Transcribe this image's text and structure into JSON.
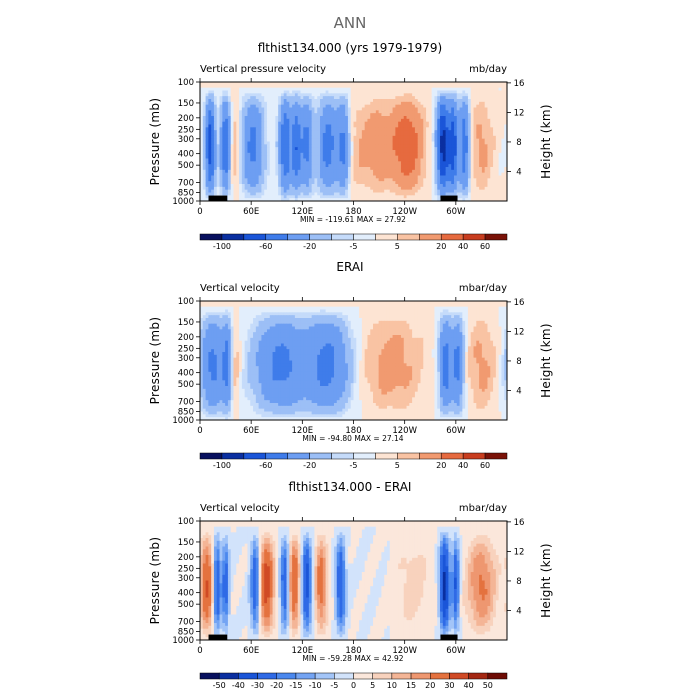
{
  "title": "ANN",
  "scales": {
    "full": {
      "levels": [
        -100,
        -80,
        -60,
        -40,
        -20,
        -10,
        -5,
        0,
        5,
        10,
        20,
        40,
        60
      ],
      "labels": [
        "-100",
        "-60",
        "-20",
        "-5",
        "5",
        "20",
        "40",
        "60"
      ],
      "label_levels": [
        -100,
        -60,
        -20,
        -5,
        5,
        20,
        40,
        60
      ],
      "colors": [
        "#08105e",
        "#0a2fa0",
        "#1a55d8",
        "#3f7cea",
        "#6d9ef2",
        "#9cbff6",
        "#c5dbfa",
        "#e2eefc",
        "#fde4d3",
        "#f9c3a3",
        "#f19a70",
        "#e66a3f",
        "#c83d1f",
        "#7a1208"
      ]
    },
    "diff": {
      "levels": [
        -50,
        -40,
        -30,
        -20,
        -15,
        -10,
        -5,
        0,
        5,
        10,
        15,
        20,
        30,
        40,
        50
      ],
      "labels": [
        "-50",
        "-40",
        "-30",
        "-20",
        "-15",
        "-10",
        "-5",
        "0",
        "5",
        "10",
        "15",
        "20",
        "30",
        "40",
        "50"
      ],
      "label_levels": [
        -50,
        -40,
        -30,
        -20,
        -15,
        -10,
        -5,
        0,
        5,
        10,
        15,
        20,
        30,
        40,
        50
      ],
      "colors": [
        "#08105e",
        "#0a2fa0",
        "#1a55d8",
        "#2f6ae6",
        "#4b88ee",
        "#74a4f3",
        "#a3c5f8",
        "#d2e3fb",
        "#fbe7db",
        "#f8d2bd",
        "#f4b596",
        "#ee9770",
        "#e4723f",
        "#d04a25",
        "#a42712",
        "#6e0c05"
      ]
    }
  },
  "panels": [
    {
      "title": "flthist134.000 (yrs 1979-1979)",
      "left_label": "Vertical pressure velocity",
      "right_label": "mb/day",
      "minmax": "MIN = -119.61   MAX =  27.92",
      "scale": "full",
      "mask": true
    },
    {
      "title": "ERAI",
      "left_label": "Vertical velocity",
      "right_label": "mbar/day",
      "minmax": "MIN = -94.80   MAX =  27.14",
      "scale": "full",
      "mask": false
    },
    {
      "title": "flthist134.000 - ERAI",
      "left_label": "Vertical velocity",
      "right_label": "mbar/day",
      "minmax": "MIN = -59.28   MAX =  42.92",
      "scale": "diff",
      "mask": true
    }
  ],
  "axes": {
    "ylabel": "Pressure (mb)",
    "y2label": "Height (km)",
    "pressure_ticks": [
      100,
      150,
      200,
      250,
      300,
      400,
      500,
      700,
      850,
      1000
    ],
    "height_ticks": [
      4,
      8,
      12,
      16
    ],
    "lon_ticks": [
      "0",
      "60E",
      "120E",
      "180",
      "120W",
      "60W"
    ],
    "lon_tick_values": [
      0,
      60,
      120,
      180,
      240,
      300
    ]
  },
  "chart_data": [
    {
      "type": "heatmap",
      "title": "flthist134.000 (yrs 1979-1979)",
      "ylabel": "Pressure (mb)",
      "y2label": "Height (km)",
      "x_range": [
        0,
        360
      ],
      "y_range_mb": [
        1000,
        100
      ],
      "units": "mb/day",
      "min": -119.61,
      "max": 27.92,
      "ascent_bands": [
        {
          "lon": 12,
          "width": 4,
          "amp": -70
        },
        {
          "lon": 30,
          "width": 4,
          "amp": -60
        },
        {
          "lon": 62,
          "width": 9,
          "amp": -45
        },
        {
          "lon": 100,
          "width": 5,
          "amp": -60
        },
        {
          "lon": 113,
          "width": 4,
          "amp": -55
        },
        {
          "lon": 125,
          "width": 5,
          "amp": -45
        },
        {
          "lon": 150,
          "width": 8,
          "amp": -50
        },
        {
          "lon": 168,
          "width": 5,
          "amp": -45
        },
        {
          "lon": 285,
          "width": 5,
          "amp": -90
        },
        {
          "lon": 297,
          "width": 4,
          "amp": -70
        },
        {
          "lon": 310,
          "width": 4,
          "amp": -55
        }
      ],
      "descent_zones": [
        {
          "lon": 210,
          "width": 25,
          "amp": 15
        },
        {
          "lon": 245,
          "width": 12,
          "amp": 22
        },
        {
          "lon": 330,
          "width": 10,
          "amp": 12
        },
        {
          "lon": 40,
          "width": 5,
          "amp": 12
        }
      ]
    },
    {
      "type": "heatmap",
      "title": "ERAI",
      "ylabel": "Pressure (mb)",
      "y2label": "Height (km)",
      "x_range": [
        0,
        360
      ],
      "y_range_mb": [
        1000,
        100
      ],
      "units": "mbar/day",
      "min": -94.8,
      "max": 27.14,
      "ascent_bands": [
        {
          "lon": 15,
          "width": 10,
          "amp": -45
        },
        {
          "lon": 32,
          "width": 4,
          "amp": -40
        },
        {
          "lon": 95,
          "width": 22,
          "amp": -45
        },
        {
          "lon": 150,
          "width": 18,
          "amp": -45
        },
        {
          "lon": 288,
          "width": 5,
          "amp": -50
        },
        {
          "lon": 302,
          "width": 5,
          "amp": -45
        }
      ],
      "descent_zones": [
        {
          "lon": 225,
          "width": 25,
          "amp": 14
        },
        {
          "lon": 330,
          "width": 12,
          "amp": 12
        },
        {
          "lon": 40,
          "width": 5,
          "amp": 12
        }
      ]
    },
    {
      "type": "heatmap",
      "title": "flthist134.000 - ERAI",
      "ylabel": "Pressure (mb)",
      "y2label": "Height (km)",
      "x_range": [
        0,
        360
      ],
      "y_range_mb": [
        1000,
        100
      ],
      "units": "mbar/day",
      "min": -59.28,
      "max": 42.92,
      "ascent_bands": [
        {
          "lon": 20,
          "width": 3,
          "amp": -30
        },
        {
          "lon": 30,
          "width": 3,
          "amp": -25
        },
        {
          "lon": 65,
          "width": 4,
          "amp": -30
        },
        {
          "lon": 100,
          "width": 4,
          "amp": -30
        },
        {
          "lon": 125,
          "width": 4,
          "amp": -35
        },
        {
          "lon": 165,
          "width": 4,
          "amp": -30
        },
        {
          "lon": 287,
          "width": 4,
          "amp": -45
        },
        {
          "lon": 300,
          "width": 3,
          "amp": -30
        }
      ],
      "descent_zones": [
        {
          "lon": 8,
          "width": 5,
          "amp": 30
        },
        {
          "lon": 78,
          "width": 6,
          "amp": 35
        },
        {
          "lon": 110,
          "width": 5,
          "amp": 30
        },
        {
          "lon": 142,
          "width": 5,
          "amp": 25
        },
        {
          "lon": 330,
          "width": 12,
          "amp": 22
        },
        {
          "lon": 250,
          "width": 15,
          "amp": 8
        }
      ]
    }
  ]
}
